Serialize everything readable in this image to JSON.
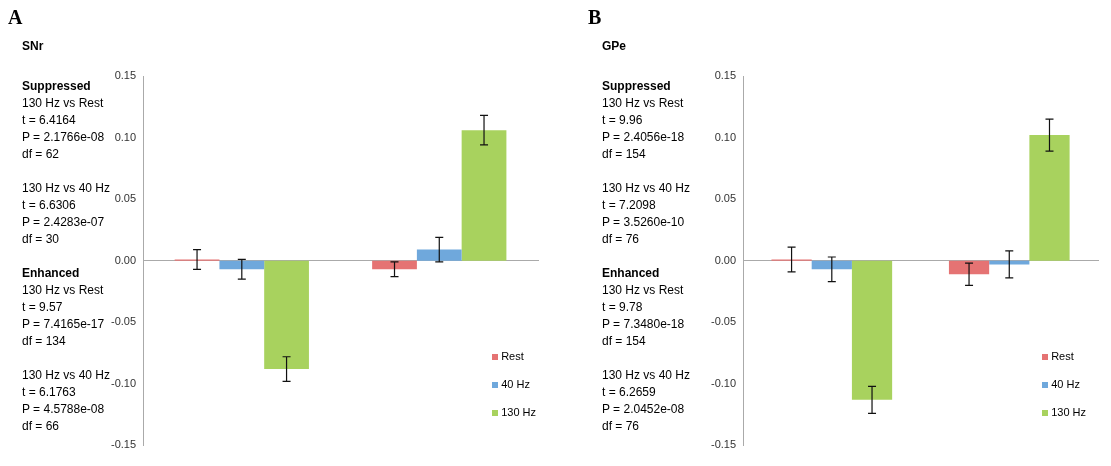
{
  "chart_data": [
    {
      "type": "bar",
      "title": "A",
      "categories": [
        null,
        null
      ],
      "series": [
        {
          "name": "Rest",
          "color": "#e57373",
          "values": [
            0.001,
            -0.007
          ],
          "errors": [
            0.008,
            0.006
          ]
        },
        {
          "name": "40 Hz",
          "color": "#6fa8dc",
          "values": [
            -0.007,
            0.009
          ],
          "errors": [
            0.008,
            0.01
          ]
        },
        {
          "name": "130 Hz",
          "color": "#a8d25e",
          "values": [
            -0.088,
            0.106
          ],
          "errors": [
            0.01,
            0.012
          ]
        }
      ],
      "ylim": [
        -0.15,
        0.15
      ],
      "yticks": [
        0.15,
        {
          "value": 0.1,
          "label": "0.10"
        },
        0.05,
        {
          "value": 0,
          "label": "0.00"
        },
        -0.05,
        {
          "value": -0.1,
          "label": "-0.10"
        },
        -0.15
      ],
      "legend": "bottom right",
      "tick_labels": "y",
      "annotations": [
        "SNr",
        "Suppressed",
        "130 Hz vs Rest\nt = 6.4164\nP = 2.1766e-08\ndf = 62",
        "130 Hz vs 40 Hz\nt = 6.6306\nP = 2.4283e-07\ndf = 30",
        "Enhanced",
        "130 Hz vs Rest\nt = 9.57\nP = 7.4165e-17\ndf = 134",
        "130 Hz vs 40 Hz\nt = 6.1763\nP = 4.5788e-08\ndf = 66"
      ]
    },
    {
      "type": "bar",
      "title": "B",
      "categories": [
        null,
        null
      ],
      "series": [
        {
          "name": "Rest",
          "color": "#e57373",
          "values": [
            0.001,
            -0.011
          ],
          "errors": [
            0.01,
            0.009
          ]
        },
        {
          "name": "40 Hz",
          "color": "#6fa8dc",
          "values": [
            -0.007,
            -0.003
          ],
          "errors": [
            0.01,
            0.011
          ]
        },
        {
          "name": "130 Hz",
          "color": "#a8d25e",
          "values": [
            -0.113,
            0.102
          ],
          "errors": [
            0.011,
            0.013
          ]
        }
      ],
      "ylim": [
        -0.15,
        0.15
      ],
      "yticks": [
        0.15,
        {
          "value": 0.1,
          "label": "0.10"
        },
        0.05,
        {
          "value": 0,
          "label": "0.00"
        },
        -0.05,
        {
          "value": -0.1,
          "label": "-0.10"
        },
        -0.15
      ],
      "legend": "bottom right",
      "tick_labels": "y",
      "annotations": [
        "GPe",
        "Suppressed",
        "130 Hz vs Rest\nt = 9.96\nP = 2.4056e-18\ndf = 154",
        "130 Hz vs 40 Hz\nt = 7.2098\nP = 3.5260e-10\ndf = 76",
        "Enhanced",
        "130 Hz vs Rest\nt = 9.78\nP = 7.3480e-18\ndf = 154",
        "130 Hz vs 40 Hz\nt = 6.2659\nP = 2.0452e-08\ndf = 76"
      ]
    }
  ]
}
